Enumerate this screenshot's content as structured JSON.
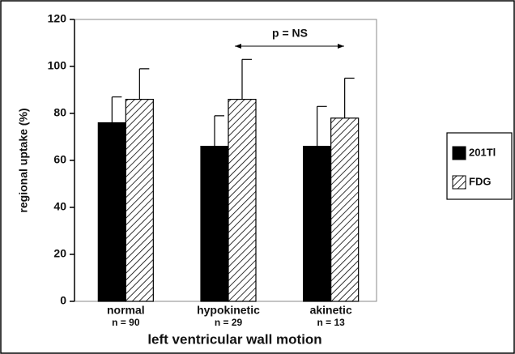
{
  "chart_data": {
    "type": "bar",
    "categories": [
      "normal",
      "hypokinetic",
      "akinetic"
    ],
    "category_notes": [
      "n = 90",
      "n = 29",
      "n = 13"
    ],
    "xlabel": "left ventricular wall motion",
    "ylabel": "regional uptake (%)",
    "ylim": [
      0,
      120
    ],
    "yticks": [
      0,
      20,
      40,
      60,
      80,
      100,
      120
    ],
    "grid": false,
    "series": [
      {
        "name": "201Tl",
        "color": "#000000",
        "pattern": "solid",
        "values": [
          76,
          66,
          66
        ],
        "errors": [
          11,
          13,
          17
        ]
      },
      {
        "name": "FDG",
        "color": "#000000",
        "pattern": "hatch",
        "values": [
          86,
          86,
          78
        ],
        "errors": [
          13,
          17,
          17
        ]
      }
    ],
    "annotation": "p = NS",
    "legend": "right"
  }
}
